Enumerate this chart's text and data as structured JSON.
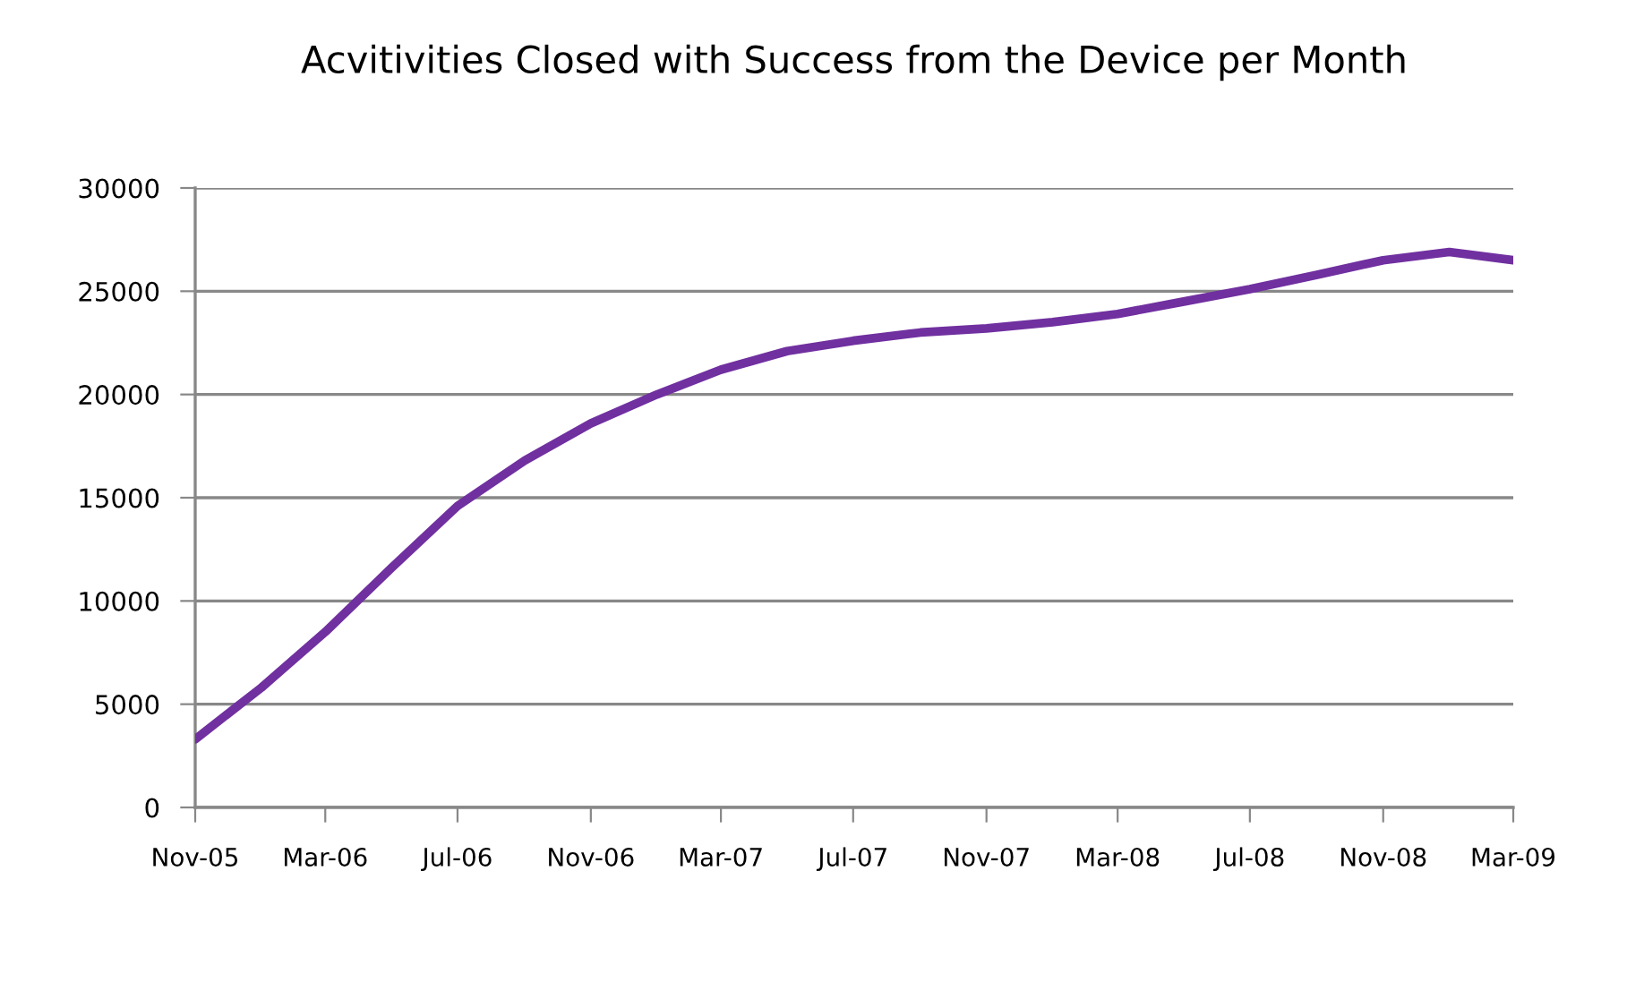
{
  "chart_data": {
    "type": "line",
    "title": "Acvitivities Closed with Success from the Device per Month",
    "x": [
      "2005-11",
      "2006-01",
      "2006-03",
      "2006-05",
      "2006-07",
      "2006-09",
      "2006-11",
      "2007-01",
      "2007-03",
      "2007-05",
      "2007-07",
      "2007-09",
      "2007-11",
      "2008-01",
      "2008-03",
      "2008-05",
      "2008-07",
      "2008-09",
      "2008-11",
      "2009-01",
      "2009-03"
    ],
    "series": [
      {
        "color": "#7030a0",
        "values": [
          3300,
          5800,
          8500,
          11600,
          14600,
          16800,
          18600,
          20000,
          21200,
          22100,
          22600,
          23000,
          23200,
          23500,
          23900,
          24500,
          25100,
          25800,
          26500,
          26900,
          26500
        ]
      }
    ],
    "xlim": [
      "2005-11",
      "2009-03"
    ],
    "xticks": [
      {
        "value": "2005-11",
        "label": "Nov-05"
      },
      {
        "value": "2006-03",
        "label": "Mar-06"
      },
      {
        "value": "2006-07",
        "label": "Jul-06"
      },
      {
        "value": "2006-11",
        "label": "Nov-06"
      },
      {
        "value": "2007-03",
        "label": "Mar-07"
      },
      {
        "value": "2007-07",
        "label": "Jul-07"
      },
      {
        "value": "2007-11",
        "label": "Nov-07"
      },
      {
        "value": "2008-03",
        "label": "Mar-08"
      },
      {
        "value": "2008-07",
        "label": "Jul-08"
      },
      {
        "value": "2008-11",
        "label": "Nov-08"
      },
      {
        "value": "2009-03",
        "label": "Mar-09"
      }
    ],
    "ylim": [
      0,
      30000
    ],
    "yticks": [
      0,
      5000,
      10000,
      15000,
      20000,
      25000,
      30000
    ],
    "grid": "y",
    "legend": false,
    "marker": "none",
    "line_style": "solid"
  }
}
